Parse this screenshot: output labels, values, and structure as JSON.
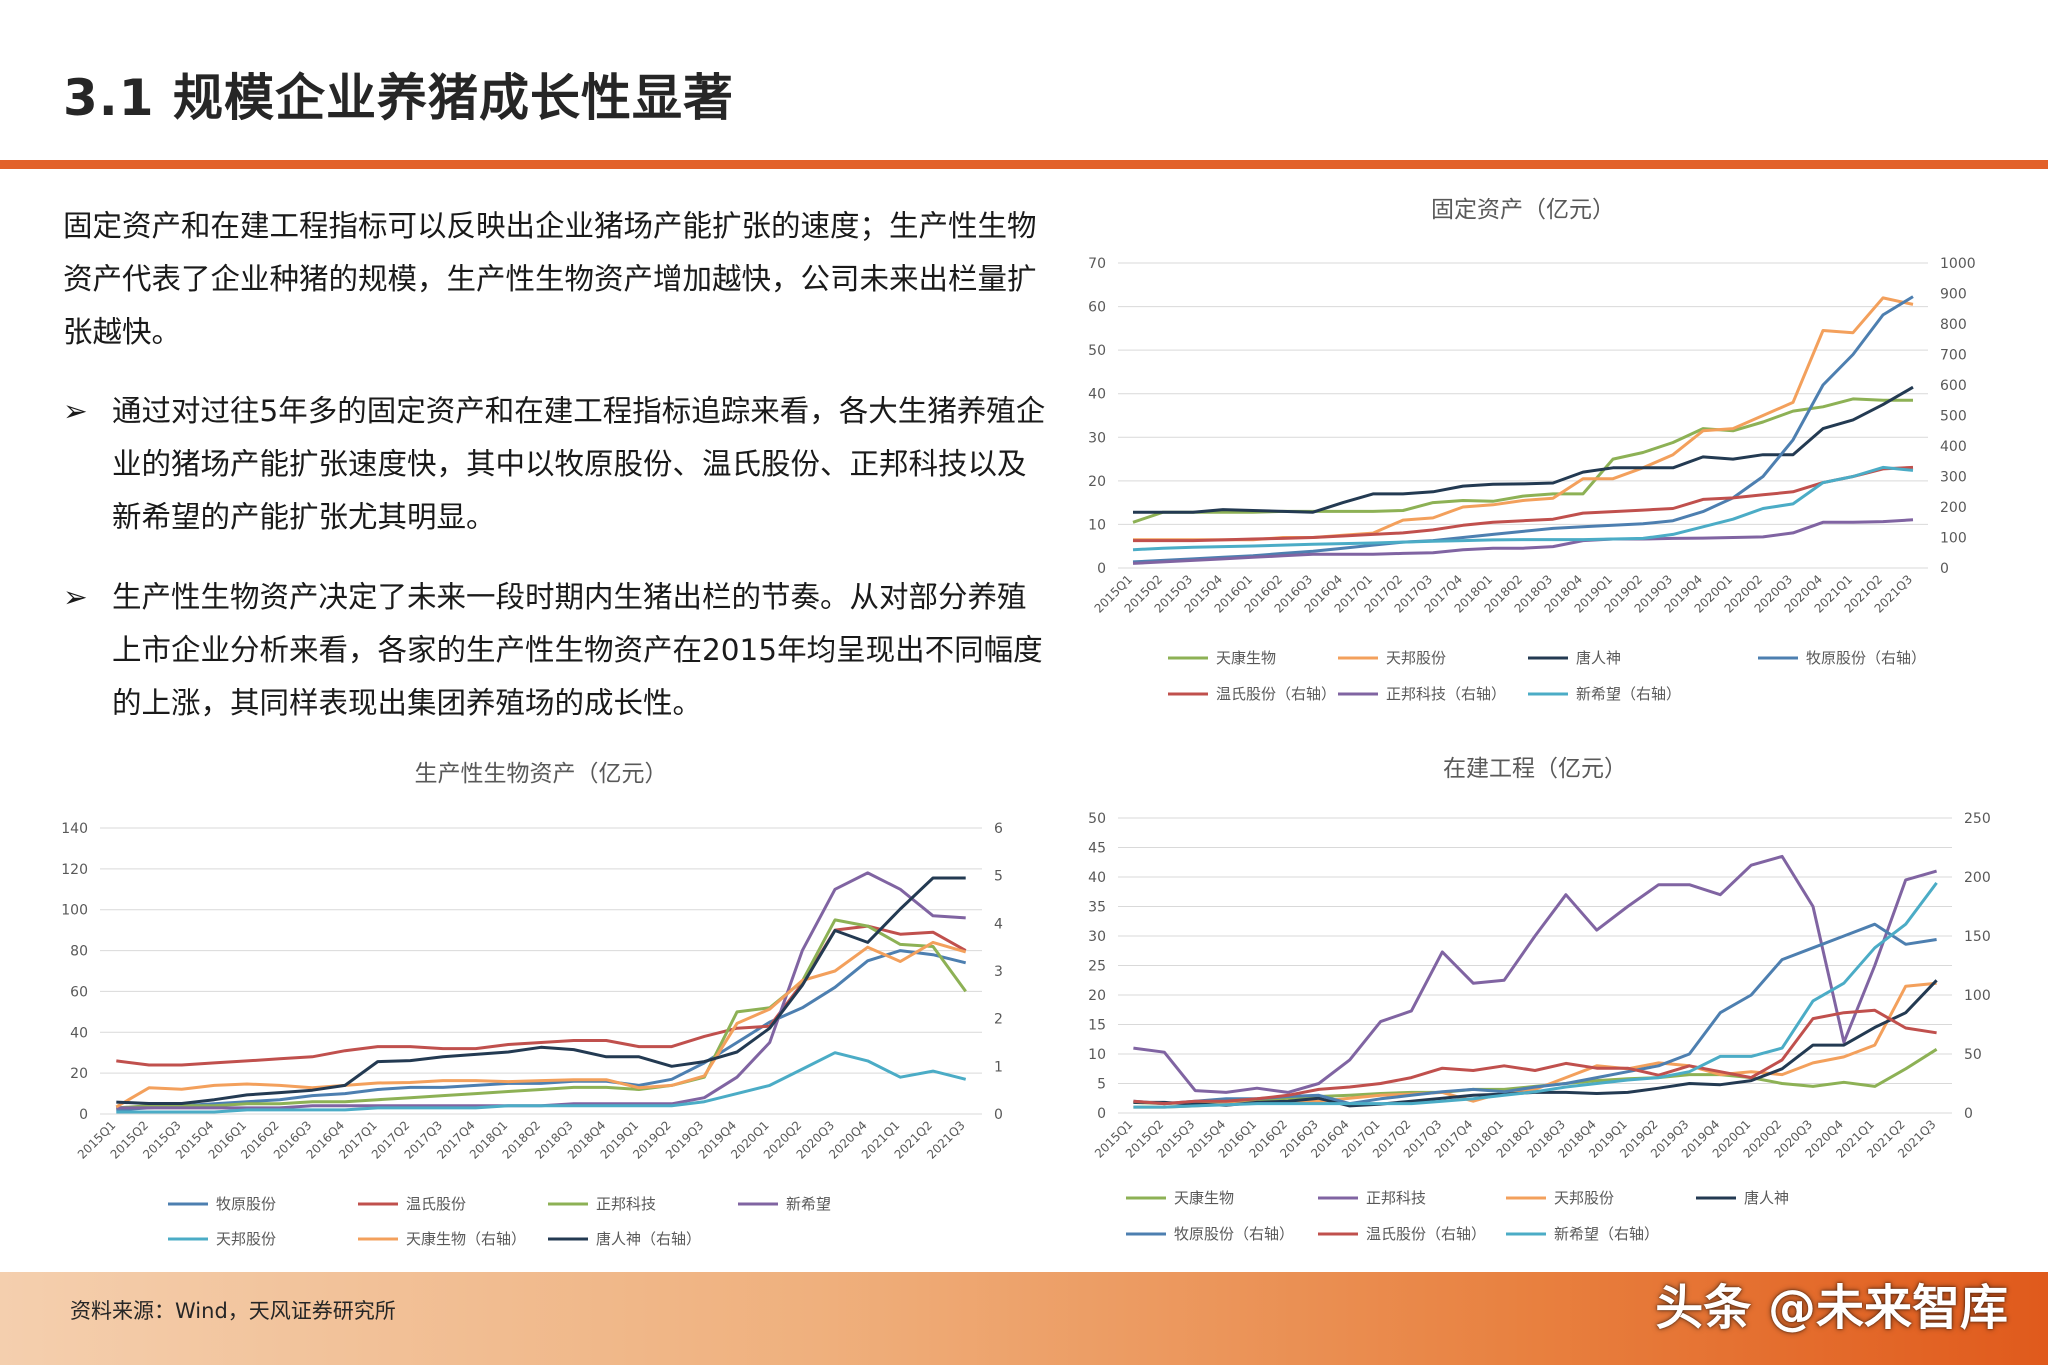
{
  "title": "3.1 规模企业养猪成长性显著",
  "intro": "固定资产和在建工程指标可以反映出企业猪场产能扩张的速度；生产性生物资产代表了企业种猪的规模，生产性生物资产增加越快，公司未来出栏量扩张越快。",
  "bullet_marker": "➢",
  "bullets": [
    "通过对过往5年多的固定资产和在建工程指标追踪来看，各大生猪养殖企业的猪场产能扩张速度快，其中以牧原股份、温氏股份、正邦科技以及新希望的产能扩张尤其明显。",
    "生产性生物资产决定了未来一段时期内生猪出栏的节奏。从对部分养殖上市企业分析来看，各家的生产性生物资产在2015年均呈现出不同幅度的上涨，其同样表现出集团养殖场的成长性。"
  ],
  "footer": {
    "source": "资料来源：Wind，天风证券研究所",
    "watermark": "头条 @未来智库"
  },
  "chart_data": [
    {
      "id": "fixed-assets",
      "type": "line",
      "title": "固定资产（亿元）",
      "categories": [
        "2015Q1",
        "2015Q2",
        "2015Q3",
        "2015Q4",
        "2016Q1",
        "2016Q2",
        "2016Q3",
        "2016Q4",
        "2017Q1",
        "2017Q2",
        "2017Q3",
        "2017Q4",
        "2018Q1",
        "2018Q2",
        "2018Q3",
        "2018Q4",
        "2019Q1",
        "2019Q2",
        "2019Q3",
        "2019Q4",
        "2020Q1",
        "2020Q2",
        "2020Q3",
        "2020Q4",
        "2021Q1",
        "2021Q2",
        "2021Q3"
      ],
      "ylim_left": [
        0,
        70
      ],
      "yticks_left": [
        0,
        10,
        20,
        30,
        40,
        50,
        60,
        70
      ],
      "ylim_right": [
        0,
        1000
      ],
      "yticks_right": [
        0,
        100,
        200,
        300,
        400,
        500,
        600,
        700,
        800,
        900,
        1000
      ],
      "series": [
        {
          "name": "天康生物",
          "axis": "left",
          "color": "#8db155",
          "values": [
            10.5,
            12.8,
            12.8,
            12.8,
            12.8,
            13,
            13,
            13,
            13,
            13.2,
            15,
            15.5,
            15.3,
            16.5,
            17,
            17,
            25,
            26.5,
            28.8,
            32,
            31.5,
            33.5,
            36,
            37,
            38.8,
            38.5,
            38.5
          ]
        },
        {
          "name": "天邦股份",
          "axis": "left",
          "color": "#f3a05c",
          "values": [
            6.5,
            6.5,
            6.5,
            6.5,
            6.5,
            7,
            7,
            7.5,
            8,
            11,
            11.5,
            14,
            14.5,
            15.5,
            16,
            20.5,
            20.5,
            23,
            26,
            31.5,
            32,
            35,
            38,
            54.5,
            54,
            62,
            60.5
          ]
        },
        {
          "name": "唐人神",
          "axis": "left",
          "color": "#233a52",
          "values": [
            12.8,
            12.8,
            12.8,
            13.4,
            13.2,
            13,
            12.8,
            15,
            17,
            17,
            17.5,
            18.8,
            19.2,
            19.3,
            19.5,
            22,
            23,
            23,
            23,
            25.5,
            25,
            26,
            26,
            32,
            34,
            37.5,
            41.5
          ]
        },
        {
          "name": "牧原股份（右轴）",
          "axis": "right",
          "color": "#4d7fb0",
          "values": [
            20,
            25,
            30,
            35,
            40,
            48,
            55,
            65,
            75,
            85,
            90,
            100,
            110,
            120,
            130,
            135,
            140,
            145,
            155,
            185,
            230,
            300,
            420,
            600,
            700,
            830,
            890
          ]
        },
        {
          "name": "温氏股份（右轴）",
          "axis": "right",
          "color": "#c0504d",
          "values": [
            90,
            90,
            90,
            92,
            95,
            97,
            100,
            105,
            110,
            115,
            125,
            140,
            150,
            155,
            160,
            180,
            185,
            190,
            195,
            225,
            230,
            240,
            250,
            280,
            300,
            325,
            330
          ]
        },
        {
          "name": "正邦科技（右轴）",
          "axis": "right",
          "color": "#8064a2",
          "values": [
            15,
            20,
            25,
            30,
            35,
            40,
            45,
            45,
            45,
            48,
            50,
            60,
            65,
            65,
            70,
            90,
            95,
            95,
            97,
            98,
            100,
            102,
            115,
            150,
            150,
            152,
            158
          ]
        },
        {
          "name": "新希望（右轴）",
          "axis": "right",
          "color": "#4bacc6",
          "values": [
            60,
            65,
            68,
            70,
            72,
            75,
            78,
            80,
            82,
            85,
            88,
            90,
            92,
            93,
            93,
            93,
            95,
            97,
            110,
            135,
            160,
            195,
            210,
            280,
            300,
            330,
            320
          ]
        }
      ]
    },
    {
      "id": "productive-bio-assets",
      "type": "line",
      "title": "生产性生物资产（亿元）",
      "categories": [
        "2015Q1",
        "2015Q2",
        "2015Q3",
        "2015Q4",
        "2016Q1",
        "2016Q2",
        "2016Q3",
        "2016Q4",
        "2017Q1",
        "2017Q2",
        "2017Q3",
        "2017Q4",
        "2018Q1",
        "2018Q2",
        "2018Q3",
        "2018Q4",
        "2019Q1",
        "2019Q2",
        "2019Q3",
        "2019Q4",
        "2020Q1",
        "2020Q2",
        "2020Q3",
        "2020Q4",
        "2021Q1",
        "2021Q2",
        "2021Q3"
      ],
      "ylim_left": [
        0,
        140
      ],
      "yticks_left": [
        0,
        20,
        40,
        60,
        80,
        100,
        120,
        140
      ],
      "ylim_right": [
        0,
        6
      ],
      "yticks_right": [
        0,
        1,
        2,
        3,
        4,
        5,
        6
      ],
      "series": [
        {
          "name": "牧原股份",
          "axis": "left",
          "color": "#4d7fb0",
          "values": [
            2,
            3,
            4,
            5,
            6,
            7,
            9,
            10,
            12,
            13,
            13,
            14,
            15,
            15,
            16,
            16,
            14,
            17,
            25,
            35,
            45,
            52,
            62,
            75,
            80,
            78,
            74
          ]
        },
        {
          "name": "温氏股份",
          "axis": "left",
          "color": "#c0504d",
          "values": [
            26,
            24,
            24,
            25,
            26,
            27,
            28,
            31,
            33,
            33,
            32,
            32,
            34,
            35,
            36,
            36,
            33,
            33,
            38,
            42,
            43,
            64,
            90,
            92,
            88,
            89,
            80
          ]
        },
        {
          "name": "正邦科技",
          "axis": "left",
          "color": "#8db155",
          "values": [
            3,
            4,
            4,
            4,
            5,
            5,
            6,
            6,
            7,
            8,
            9,
            10,
            11,
            12,
            13,
            13,
            12,
            14,
            18,
            50,
            52,
            65,
            95,
            92,
            83,
            82,
            60
          ]
        },
        {
          "name": "新希望",
          "axis": "left",
          "color": "#8064a2",
          "values": [
            3,
            3,
            3,
            3,
            3,
            3,
            4,
            4,
            4,
            4,
            4,
            4,
            4,
            4,
            5,
            5,
            5,
            5,
            8,
            18,
            35,
            80,
            110,
            118,
            110,
            97,
            96
          ]
        },
        {
          "name": "天邦股份",
          "axis": "left",
          "color": "#4bacc6",
          "values": [
            1,
            1,
            1,
            1,
            2,
            2,
            2,
            2,
            3,
            3,
            3,
            3,
            4,
            4,
            4,
            4,
            4,
            4,
            6,
            10,
            14,
            22,
            30,
            26,
            18,
            21,
            17
          ]
        },
        {
          "name": "天康生物（右轴）",
          "axis": "right",
          "color": "#f3a05c",
          "values": [
            0.15,
            0.55,
            0.52,
            0.6,
            0.63,
            0.6,
            0.55,
            0.6,
            0.65,
            0.66,
            0.7,
            0.7,
            0.68,
            0.7,
            0.72,
            0.72,
            0.55,
            0.6,
            0.8,
            1.9,
            2.2,
            2.8,
            3.0,
            3.5,
            3.2,
            3.6,
            3.4
          ]
        },
        {
          "name": "唐人神（右轴）",
          "axis": "right",
          "color": "#233a52",
          "values": [
            0.25,
            0.22,
            0.22,
            0.3,
            0.4,
            0.45,
            0.5,
            0.6,
            1.1,
            1.12,
            1.2,
            1.25,
            1.3,
            1.4,
            1.35,
            1.2,
            1.2,
            1.0,
            1.1,
            1.3,
            1.8,
            2.7,
            3.85,
            3.6,
            4.3,
            4.95,
            4.95
          ]
        }
      ]
    },
    {
      "id": "construction-in-progress",
      "type": "line",
      "title": "在建工程（亿元）",
      "categories": [
        "2015Q1",
        "2015Q2",
        "2015Q3",
        "2015Q4",
        "2016Q1",
        "2016Q2",
        "2016Q3",
        "2016Q4",
        "2017Q1",
        "2017Q2",
        "2017Q3",
        "2017Q4",
        "2018Q1",
        "2018Q2",
        "2018Q3",
        "2018Q4",
        "2019Q1",
        "2019Q2",
        "2019Q3",
        "2019Q4",
        "2020Q1",
        "2020Q2",
        "2020Q3",
        "2020Q4",
        "2021Q1",
        "2021Q2",
        "2021Q3"
      ],
      "ylim_left": [
        0,
        50
      ],
      "yticks_left": [
        0,
        5,
        10,
        15,
        20,
        25,
        30,
        35,
        40,
        45,
        50
      ],
      "ylim_right": [
        0,
        250
      ],
      "yticks_right": [
        0,
        50,
        100,
        150,
        200,
        250
      ],
      "series": [
        {
          "name": "天康生物",
          "axis": "left",
          "color": "#8db155",
          "values": [
            1.8,
            1.6,
            1.8,
            2,
            2.2,
            2.5,
            2.8,
            3,
            3.3,
            3.5,
            3.5,
            4,
            4,
            4.5,
            5,
            5.5,
            5.8,
            6,
            6.5,
            6.5,
            6,
            5,
            4.5,
            5.2,
            4.5,
            7.5,
            10.8
          ]
        },
        {
          "name": "正邦科技",
          "axis": "left",
          "color": "#8064a2",
          "values": [
            11,
            10.3,
            3.8,
            3.5,
            4.2,
            3.5,
            5,
            9,
            15.5,
            17.3,
            27.3,
            22,
            22.5,
            30,
            37,
            31,
            35,
            38.7,
            38.7,
            37,
            42,
            43.5,
            35,
            12,
            25,
            39.5,
            41
          ]
        },
        {
          "name": "天邦股份",
          "axis": "left",
          "color": "#f3a05c",
          "values": [
            1,
            1,
            1.2,
            1.5,
            1.8,
            2,
            2,
            2.5,
            3,
            3.2,
            3.5,
            2,
            3.5,
            4,
            6,
            8,
            7.5,
            8.5,
            8,
            6.5,
            7,
            6.5,
            8.5,
            9.5,
            11.5,
            21.5,
            22
          ]
        },
        {
          "name": "唐人神",
          "axis": "left",
          "color": "#233a52",
          "values": [
            1.8,
            1.8,
            1.5,
            1.3,
            1.8,
            2,
            2.5,
            1.2,
            1.5,
            2,
            2.5,
            3,
            3.2,
            3.5,
            3.5,
            3.3,
            3.5,
            4.2,
            5,
            4.8,
            5.5,
            7.5,
            11.5,
            11.5,
            14.5,
            17,
            22.5
          ]
        },
        {
          "name": "牧原股份（右轴）",
          "axis": "right",
          "color": "#4d7fb0",
          "values": [
            10,
            8,
            10,
            12,
            12,
            14,
            15,
            8,
            12,
            15,
            18,
            20,
            18,
            22,
            25,
            30,
            35,
            40,
            50,
            85,
            100,
            130,
            140,
            150,
            160,
            143,
            147
          ]
        },
        {
          "name": "温氏股份（右轴）",
          "axis": "right",
          "color": "#c0504d",
          "values": [
            10,
            8,
            10,
            10,
            12,
            15,
            20,
            22,
            25,
            30,
            38,
            36,
            40,
            36,
            42,
            38,
            38,
            32,
            40,
            35,
            30,
            45,
            80,
            85,
            87,
            72,
            68
          ]
        },
        {
          "name": "新希望（右轴）",
          "axis": "right",
          "color": "#4bacc6",
          "values": [
            5,
            5,
            6,
            7,
            8,
            8,
            8,
            8,
            8,
            8,
            10,
            12,
            15,
            18,
            22,
            25,
            28,
            30,
            35,
            48,
            48,
            55,
            95,
            110,
            140,
            160,
            195
          ]
        }
      ]
    }
  ]
}
